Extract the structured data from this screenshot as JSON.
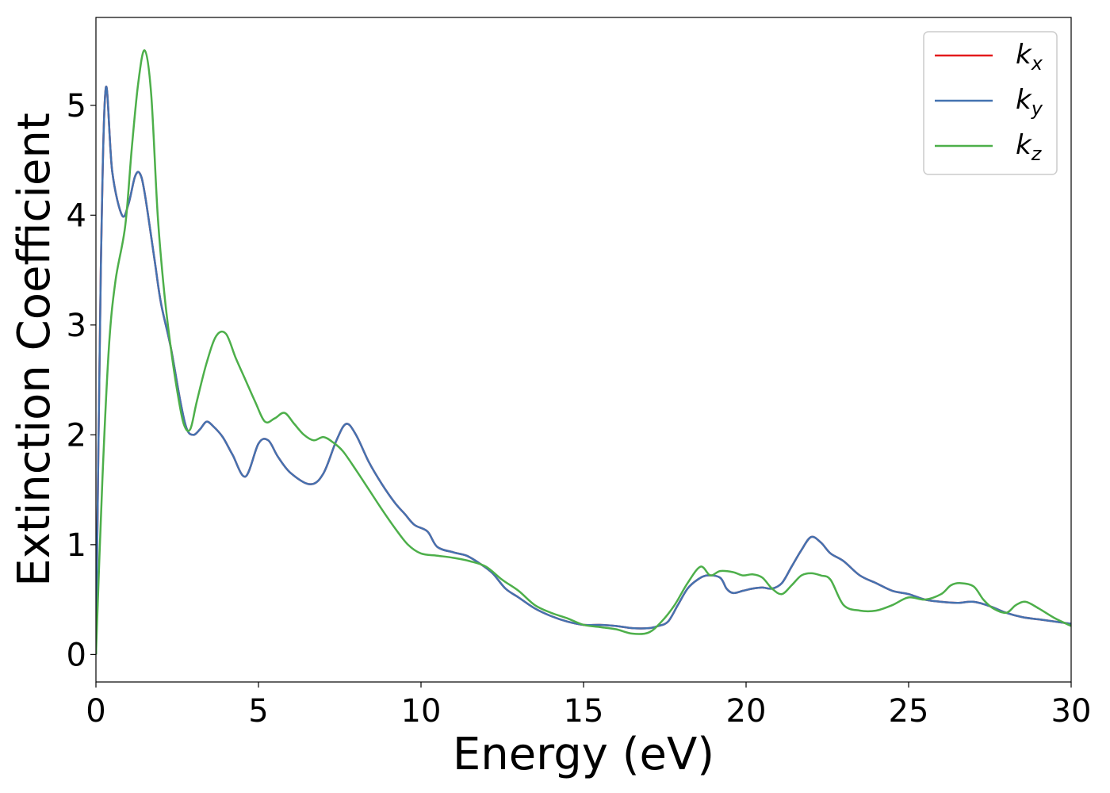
{
  "chart_data": {
    "type": "line",
    "title": "",
    "xlabel": "Energy (eV)",
    "ylabel": "Extinction Coefficient",
    "xlim": [
      0,
      30
    ],
    "ylim": [
      -0.25,
      5.8
    ],
    "xticks": [
      0,
      5,
      10,
      15,
      20,
      25,
      30
    ],
    "yticks": [
      0,
      1,
      2,
      3,
      4,
      5
    ],
    "grid": false,
    "legend_position": "top-right",
    "series": [
      {
        "name": "k",
        "subscript": "x",
        "color": "#e41a1c",
        "x": [
          0,
          0.15,
          0.3,
          0.5,
          0.8,
          1.0,
          1.2,
          1.35,
          1.5,
          1.8,
          2.0,
          2.3,
          2.6,
          2.8,
          3.0,
          3.2,
          3.4,
          3.6,
          3.9,
          4.2,
          4.6,
          5.0,
          5.3,
          5.6,
          6.0,
          6.6,
          7.0,
          7.4,
          7.7,
          8.0,
          8.4,
          8.8,
          9.2,
          9.5,
          9.8,
          10.2,
          10.5,
          11.0,
          11.4,
          11.8,
          12.2,
          12.6,
          13.0,
          13.5,
          14.0,
          14.5,
          15.0,
          15.5,
          16.0,
          16.5,
          17.0,
          17.3,
          17.6,
          17.9,
          18.2,
          18.5,
          18.8,
          19.2,
          19.4,
          19.6,
          19.9,
          20.2,
          20.5,
          20.8,
          21.1,
          21.4,
          21.7,
          22.0,
          22.3,
          22.6,
          23.0,
          23.5,
          24.0,
          24.5,
          25.0,
          25.5,
          26.0,
          26.5,
          27.0,
          27.5,
          28.0,
          28.5,
          29.0,
          29.5,
          30.0
        ],
        "y": [
          0,
          3.5,
          5.15,
          4.4,
          4.0,
          4.1,
          4.35,
          4.38,
          4.2,
          3.6,
          3.2,
          2.8,
          2.3,
          2.05,
          2.0,
          2.05,
          2.12,
          2.08,
          1.98,
          1.82,
          1.62,
          1.92,
          1.95,
          1.8,
          1.65,
          1.55,
          1.65,
          1.95,
          2.1,
          2.0,
          1.75,
          1.55,
          1.38,
          1.28,
          1.18,
          1.12,
          0.98,
          0.93,
          0.9,
          0.83,
          0.74,
          0.6,
          0.52,
          0.42,
          0.35,
          0.3,
          0.27,
          0.27,
          0.26,
          0.24,
          0.24,
          0.26,
          0.3,
          0.45,
          0.6,
          0.68,
          0.72,
          0.7,
          0.6,
          0.56,
          0.58,
          0.6,
          0.61,
          0.6,
          0.65,
          0.8,
          0.95,
          1.07,
          1.02,
          0.92,
          0.85,
          0.72,
          0.65,
          0.58,
          0.55,
          0.5,
          0.48,
          0.47,
          0.48,
          0.44,
          0.38,
          0.34,
          0.32,
          0.3,
          0.28
        ]
      },
      {
        "name": "k",
        "subscript": "y",
        "color": "#4472b0",
        "x": [
          0,
          0.15,
          0.3,
          0.5,
          0.8,
          1.0,
          1.2,
          1.35,
          1.5,
          1.8,
          2.0,
          2.3,
          2.6,
          2.8,
          3.0,
          3.2,
          3.4,
          3.6,
          3.9,
          4.2,
          4.6,
          5.0,
          5.3,
          5.6,
          6.0,
          6.6,
          7.0,
          7.4,
          7.7,
          8.0,
          8.4,
          8.8,
          9.2,
          9.5,
          9.8,
          10.2,
          10.5,
          11.0,
          11.4,
          11.8,
          12.2,
          12.6,
          13.0,
          13.5,
          14.0,
          14.5,
          15.0,
          15.5,
          16.0,
          16.5,
          17.0,
          17.3,
          17.6,
          17.9,
          18.2,
          18.5,
          18.8,
          19.2,
          19.4,
          19.6,
          19.9,
          20.2,
          20.5,
          20.8,
          21.1,
          21.4,
          21.7,
          22.0,
          22.3,
          22.6,
          23.0,
          23.5,
          24.0,
          24.5,
          25.0,
          25.5,
          26.0,
          26.5,
          27.0,
          27.5,
          28.0,
          28.5,
          29.0,
          29.5,
          30.0
        ],
        "y": [
          0,
          3.5,
          5.15,
          4.4,
          4.0,
          4.1,
          4.35,
          4.38,
          4.2,
          3.6,
          3.2,
          2.8,
          2.3,
          2.05,
          2.0,
          2.05,
          2.12,
          2.08,
          1.98,
          1.82,
          1.62,
          1.92,
          1.95,
          1.8,
          1.65,
          1.55,
          1.65,
          1.95,
          2.1,
          2.0,
          1.75,
          1.55,
          1.38,
          1.28,
          1.18,
          1.12,
          0.98,
          0.93,
          0.9,
          0.83,
          0.74,
          0.6,
          0.52,
          0.42,
          0.35,
          0.3,
          0.27,
          0.27,
          0.26,
          0.24,
          0.24,
          0.26,
          0.3,
          0.45,
          0.6,
          0.68,
          0.72,
          0.7,
          0.6,
          0.56,
          0.58,
          0.6,
          0.61,
          0.6,
          0.65,
          0.8,
          0.95,
          1.07,
          1.02,
          0.92,
          0.85,
          0.72,
          0.65,
          0.58,
          0.55,
          0.5,
          0.48,
          0.47,
          0.48,
          0.44,
          0.38,
          0.34,
          0.32,
          0.3,
          0.28
        ]
      },
      {
        "name": "k",
        "subscript": "z",
        "color": "#4daf4a",
        "x": [
          0,
          0.2,
          0.4,
          0.6,
          0.9,
          1.1,
          1.3,
          1.5,
          1.7,
          1.9,
          2.1,
          2.3,
          2.5,
          2.7,
          2.9,
          3.1,
          3.4,
          3.7,
          4.0,
          4.3,
          4.6,
          4.9,
          5.2,
          5.5,
          5.8,
          6.1,
          6.4,
          6.7,
          7.0,
          7.3,
          7.6,
          8.0,
          8.4,
          8.8,
          9.2,
          9.6,
          10.0,
          10.5,
          11.0,
          11.5,
          12.0,
          12.5,
          13.0,
          13.5,
          14.0,
          14.5,
          15.0,
          15.5,
          16.0,
          16.5,
          17.0,
          17.4,
          17.8,
          18.2,
          18.6,
          18.9,
          19.2,
          19.6,
          19.9,
          20.2,
          20.5,
          20.8,
          21.1,
          21.4,
          21.7,
          22.0,
          22.3,
          22.6,
          23.0,
          23.5,
          24.0,
          24.5,
          25.0,
          25.5,
          26.0,
          26.3,
          26.6,
          27.0,
          27.3,
          27.6,
          28.0,
          28.3,
          28.6,
          29.0,
          29.5,
          30.0
        ],
        "y": [
          0,
          1.6,
          2.8,
          3.4,
          3.9,
          4.6,
          5.2,
          5.5,
          5.1,
          4.0,
          3.3,
          2.8,
          2.4,
          2.1,
          2.05,
          2.3,
          2.65,
          2.9,
          2.92,
          2.7,
          2.5,
          2.3,
          2.12,
          2.15,
          2.2,
          2.1,
          2.0,
          1.95,
          1.98,
          1.93,
          1.85,
          1.68,
          1.5,
          1.32,
          1.15,
          1.0,
          0.92,
          0.9,
          0.88,
          0.85,
          0.8,
          0.68,
          0.58,
          0.45,
          0.38,
          0.33,
          0.27,
          0.25,
          0.23,
          0.19,
          0.2,
          0.3,
          0.45,
          0.65,
          0.8,
          0.72,
          0.76,
          0.75,
          0.72,
          0.73,
          0.7,
          0.6,
          0.55,
          0.63,
          0.72,
          0.74,
          0.72,
          0.68,
          0.45,
          0.4,
          0.4,
          0.45,
          0.52,
          0.5,
          0.55,
          0.63,
          0.65,
          0.62,
          0.5,
          0.42,
          0.38,
          0.45,
          0.48,
          0.42,
          0.33,
          0.26
        ]
      }
    ]
  }
}
